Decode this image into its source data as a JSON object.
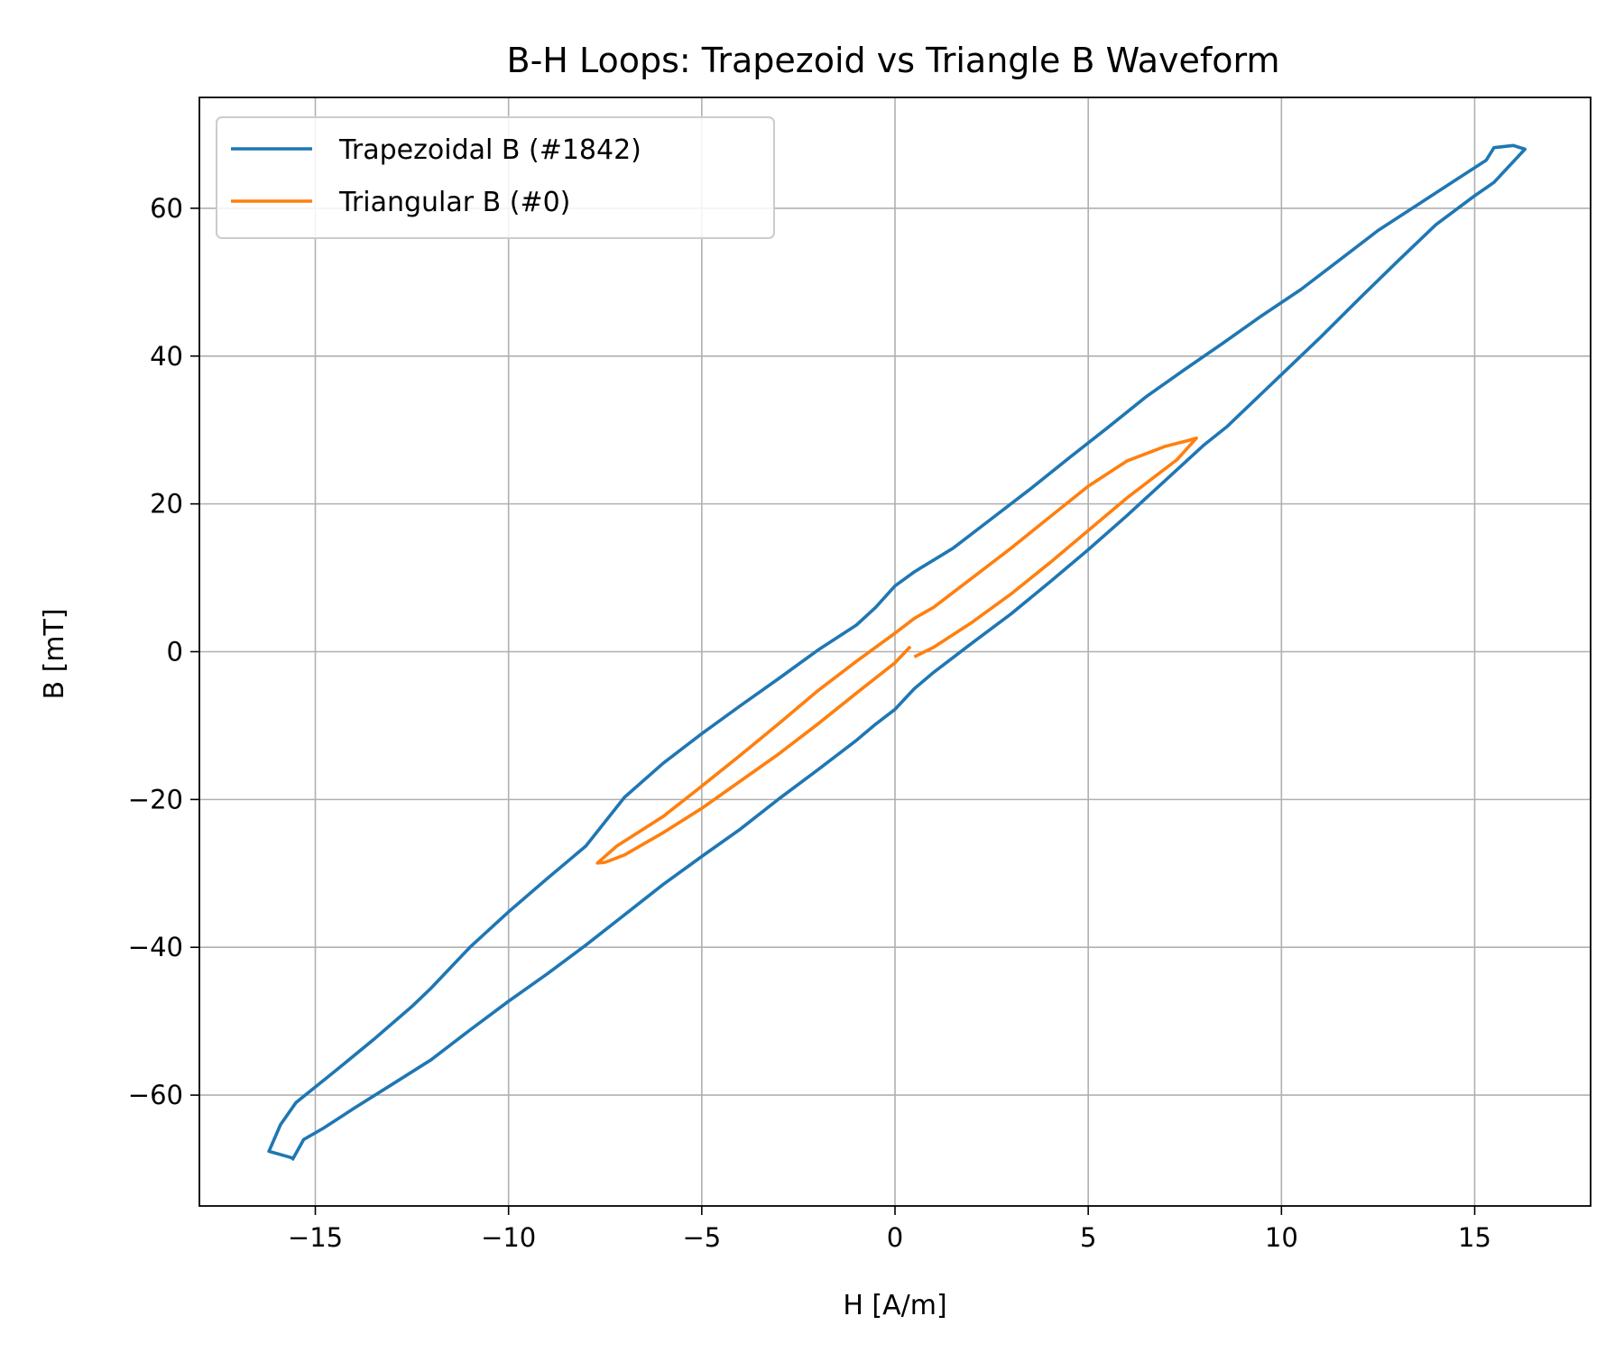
{
  "chart_data": {
    "type": "line",
    "title": "B-H Loops: Trapezoid vs Triangle B Waveform",
    "xlabel": "H [A/m]",
    "ylabel": "B [mT]",
    "xlim": [
      -18,
      18
    ],
    "ylim": [
      -75,
      75
    ],
    "x_ticks": [
      -15,
      -10,
      -5,
      0,
      5,
      10,
      15
    ],
    "y_ticks": [
      -60,
      -40,
      -20,
      0,
      20,
      40,
      60
    ],
    "x_tick_labels": [
      "−15",
      "−10",
      "−5",
      "0",
      "5",
      "10",
      "15"
    ],
    "y_tick_labels": [
      "−60",
      "−40",
      "−20",
      "0",
      "20",
      "40",
      "60"
    ],
    "grid": true,
    "legend_position": "top-left",
    "series": [
      {
        "name": "Trapezoidal B (#1842)",
        "color": "#1f77b4",
        "x": [
          -15.6,
          -15.3,
          -14.8,
          -14.0,
          -13.0,
          -12.0,
          -11.0,
          -10.0,
          -9.0,
          -8.0,
          -7.0,
          -6.0,
          -5.0,
          -4.0,
          -3.0,
          -2.0,
          -1.0,
          -0.5,
          0.0,
          0.5,
          1.0,
          2.0,
          3.0,
          4.0,
          5.0,
          6.0,
          7.0,
          8.0,
          8.6,
          9.0,
          10.0,
          11.0,
          12.0,
          13.0,
          14.0,
          15.0,
          15.5,
          16.3,
          16.0,
          15.5,
          15.3,
          14.5,
          13.5,
          12.5,
          11.5,
          10.5,
          9.5,
          8.5,
          7.5,
          6.5,
          5.5,
          4.5,
          3.5,
          2.5,
          1.5,
          0.5,
          0.0,
          -0.5,
          -1.0,
          -2.0,
          -3.0,
          -4.0,
          -5.0,
          -6.0,
          -7.0,
          -7.5,
          -8.0,
          -9.0,
          -10.0,
          -11.0,
          -12.0,
          -12.5,
          -13.5,
          -14.5,
          -15.5,
          -15.9,
          -16.2,
          -15.6
        ],
        "y": [
          -68.8,
          -66.0,
          -64.5,
          -61.8,
          -58.5,
          -55.2,
          -51.2,
          -47.3,
          -43.6,
          -39.7,
          -35.6,
          -31.5,
          -27.7,
          -24.0,
          -19.9,
          -16.0,
          -12.0,
          -9.8,
          -7.8,
          -5.0,
          -2.8,
          1.2,
          5.1,
          9.4,
          13.8,
          18.4,
          23.2,
          28.0,
          30.5,
          32.5,
          37.5,
          42.5,
          47.7,
          52.8,
          57.8,
          61.7,
          63.5,
          68.0,
          68.5,
          68.2,
          66.5,
          63.8,
          60.4,
          57.0,
          53.0,
          49.0,
          45.5,
          41.8,
          38.2,
          34.5,
          30.3,
          26.2,
          22.0,
          18.0,
          14.0,
          10.8,
          8.9,
          6.0,
          3.6,
          0.2,
          -3.6,
          -7.3,
          -11.1,
          -15.1,
          -19.7,
          -23.0,
          -26.3,
          -30.7,
          -35.2,
          -40.0,
          -45.5,
          -48.0,
          -52.5,
          -56.8,
          -61.0,
          -64.0,
          -67.6,
          -68.5
        ]
      },
      {
        "name": "Triangular B (#0)",
        "color": "#ff7f0e",
        "x": [
          0.4,
          0.0,
          -1.0,
          -2.0,
          -3.0,
          -4.0,
          -5.0,
          -6.0,
          -7.0,
          -7.5,
          -7.7,
          -7.2,
          -6.0,
          -5.0,
          -4.0,
          -3.0,
          -2.0,
          -1.0,
          0.0,
          0.5,
          1.0,
          2.0,
          3.0,
          4.0,
          5.0,
          6.0,
          7.0,
          7.6,
          7.8,
          7.3,
          6.0,
          5.0,
          4.0,
          3.0,
          2.0,
          1.0,
          0.5
        ],
        "y": [
          0.7,
          -1.5,
          -5.6,
          -9.8,
          -13.8,
          -17.5,
          -21.2,
          -24.5,
          -27.5,
          -28.5,
          -28.6,
          -26.3,
          -22.3,
          -18.2,
          -14.0,
          -9.7,
          -5.3,
          -1.3,
          2.5,
          4.5,
          6.0,
          10.0,
          14.0,
          18.2,
          22.4,
          25.8,
          27.8,
          28.6,
          28.9,
          26.0,
          20.8,
          16.4,
          12.0,
          7.8,
          4.0,
          0.6,
          -0.7
        ]
      }
    ]
  }
}
